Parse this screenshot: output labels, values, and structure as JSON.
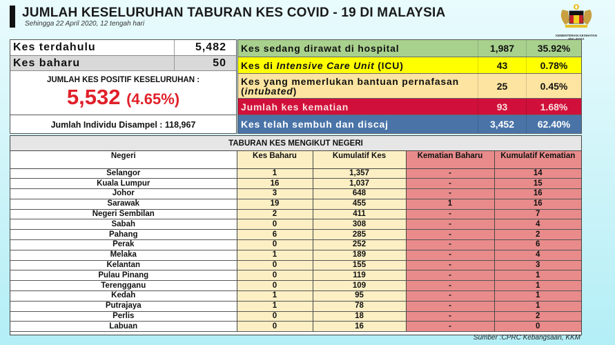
{
  "header": {
    "title": "JUMLAH KESELURUHAN TABURAN KES COVID - 19 DI MALAYSIA",
    "subtitle": "Sehingga 22 April 2020, 12 tengah hari",
    "logo_text": "KEMENTERIAN KESIHATAN MALAYSIA"
  },
  "summary": {
    "previous": {
      "label": "Kes terdahulu",
      "value": "5,482"
    },
    "new": {
      "label": "Kes baharu",
      "value": "50"
    },
    "total_label": "JUMLAH KES POSITIF KESELURUHAN :",
    "total_value": "5,532",
    "total_pct": "(4.65%)",
    "sampled": "Jumlah Individu Disampel : 118,967"
  },
  "status": [
    {
      "label_pre": "Kes sedang dirawat di hospital",
      "label_it": "",
      "label_post": "",
      "value": "1,987",
      "pct": "35.92%",
      "color": "#a9d18e",
      "text": "#111"
    },
    {
      "label_pre": "Kes di ",
      "label_it": "Intensive Care Unit",
      "label_post": " (ICU)",
      "value": "43",
      "pct": "0.78%",
      "color": "#ffff00",
      "text": "#111"
    },
    {
      "label_pre": "Kes yang memerlukan bantuan pernafasan (",
      "label_it": "intubated",
      "label_post": ")",
      "value": "25",
      "pct": "0.45%",
      "color": "#fde4a0",
      "text": "#111"
    },
    {
      "label_pre": "Jumlah kes kematian",
      "label_it": "",
      "label_post": "",
      "value": "93",
      "pct": "1.68%",
      "color": "#d0103a",
      "text": "#fbe0e0"
    },
    {
      "label_pre": "Kes telah sembuh dan discaj",
      "label_it": "",
      "label_post": "",
      "value": "3,452",
      "pct": "62.40%",
      "color": "#4a74a8",
      "text": "#ffffff"
    }
  ],
  "table": {
    "title": "TABURAN KES MENGIKUT NEGERI",
    "headers": [
      "Negeri",
      "Kes Baharu",
      "Kumulatif Kes",
      "Kematian Baharu",
      "Kumulatif Kematian"
    ],
    "rows": [
      [
        "Selangor",
        "1",
        "1,357",
        "-",
        "14"
      ],
      [
        "Kuala Lumpur",
        "16",
        "1,037",
        "-",
        "15"
      ],
      [
        "Johor",
        "3",
        "648",
        "-",
        "16"
      ],
      [
        "Sarawak",
        "19",
        "455",
        "1",
        "16"
      ],
      [
        "Negeri Sembilan",
        "2",
        "411",
        "-",
        "7"
      ],
      [
        "Sabah",
        "0",
        "308",
        "-",
        "4"
      ],
      [
        "Pahang",
        "6",
        "285",
        "-",
        "2"
      ],
      [
        "Perak",
        "0",
        "252",
        "-",
        "6"
      ],
      [
        "Melaka",
        "1",
        "189",
        "-",
        "4"
      ],
      [
        "Kelantan",
        "0",
        "155",
        "-",
        "3"
      ],
      [
        "Pulau Pinang",
        "0",
        "119",
        "-",
        "1"
      ],
      [
        "Terengganu",
        "0",
        "109",
        "-",
        "1"
      ],
      [
        "Kedah",
        "1",
        "95",
        "-",
        "1"
      ],
      [
        "Putrajaya",
        "1",
        "78",
        "-",
        "1"
      ],
      [
        "Perlis",
        "0",
        "18",
        "-",
        "2"
      ],
      [
        "Labuan",
        "0",
        "16",
        "-",
        "0"
      ]
    ]
  },
  "source": "Sumber :CPRC Kebangsaan,  KKM"
}
